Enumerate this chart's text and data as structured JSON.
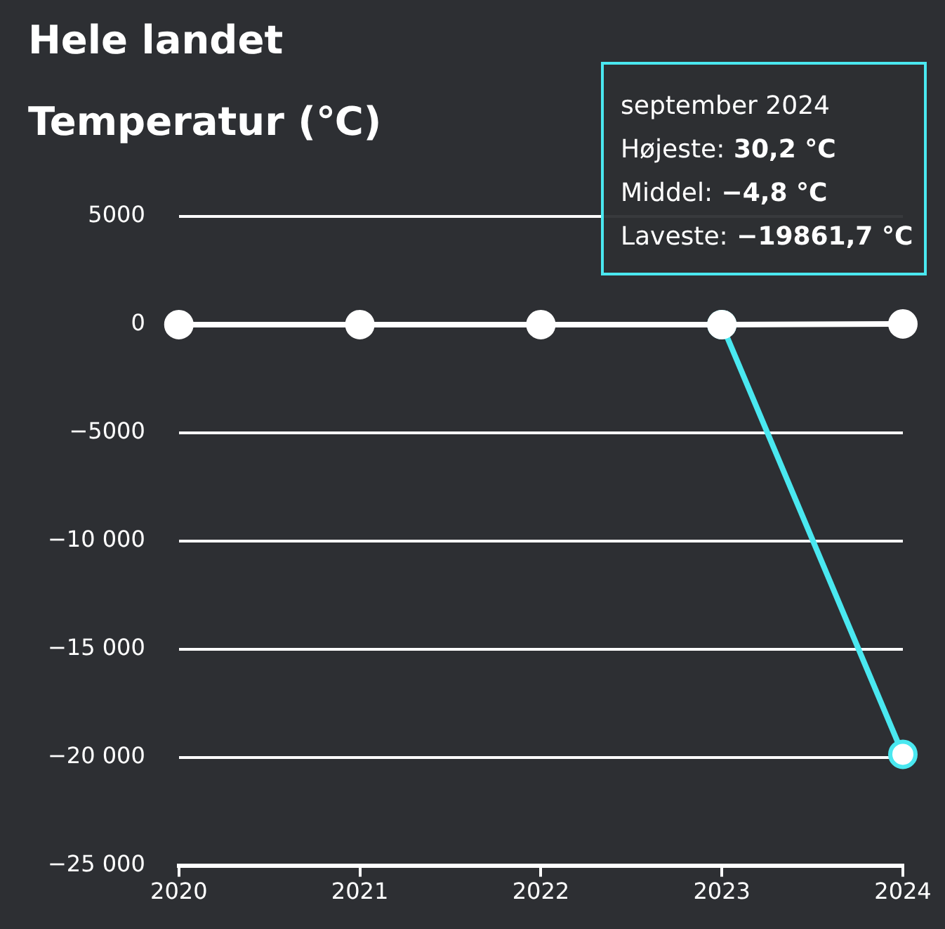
{
  "chart_data": {
    "type": "line",
    "title": "Hele landet",
    "subtitle": "Temperatur (℃)",
    "categories": [
      "2020",
      "2021",
      "2022",
      "2023",
      "2024"
    ],
    "series": [
      {
        "color": "#ffffff",
        "values": [
          0,
          0,
          0,
          0,
          30.2
        ]
      },
      {
        "color": "#4ae8f0",
        "values": [
          null,
          null,
          null,
          0,
          -19861.7
        ]
      }
    ],
    "ylim": [
      -25000,
      5000
    ],
    "yticks": [
      {
        "value": -25000,
        "label": "−25 000"
      },
      {
        "value": -20000,
        "label": "−20 000"
      },
      {
        "value": -15000,
        "label": "−15 000"
      },
      {
        "value": -10000,
        "label": "−10 000"
      },
      {
        "value": -5000,
        "label": "−5000"
      },
      0,
      5000
    ],
    "grid": "y",
    "marker": "circle",
    "line_style": "solid",
    "legend": false,
    "annotations": [
      "september 2024",
      "Højeste: 30,2 °C",
      "Middel: −4,8 °C",
      "Laveste: −19861,7 °C"
    ]
  }
}
